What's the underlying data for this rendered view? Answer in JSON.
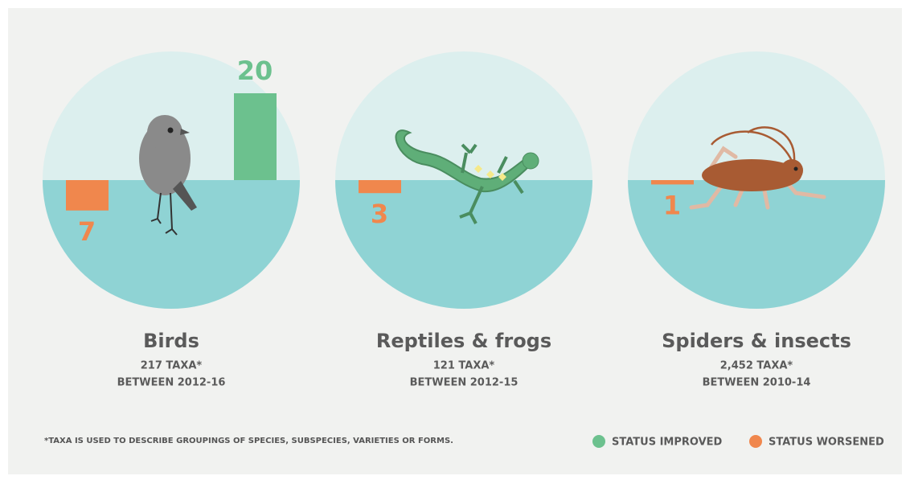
{
  "chart_data": {
    "type": "bar",
    "categories": [
      "Birds",
      "Reptiles & frogs",
      "Spiders & insects"
    ],
    "category_notes": [
      [
        "217 TAXA*",
        "BETWEEN  2012-16"
      ],
      [
        "121 TAXA*",
        "BETWEEN 2012-15"
      ],
      [
        "2,452 TAXA*",
        "BETWEEN 2010-14"
      ]
    ],
    "series": [
      {
        "name": "STATUS IMPROVED",
        "color": "#6cc18e",
        "values": [
          20,
          0,
          0
        ]
      },
      {
        "name": "STATUS WORSENED",
        "color": "#f0874d",
        "values": [
          7,
          3,
          1
        ]
      }
    ],
    "footnote": "*TAXA IS USED TO DESCRIBE GROUPINGS OF SPECIES, SUBSPECIES, VARIETIES OR FORMS."
  }
}
